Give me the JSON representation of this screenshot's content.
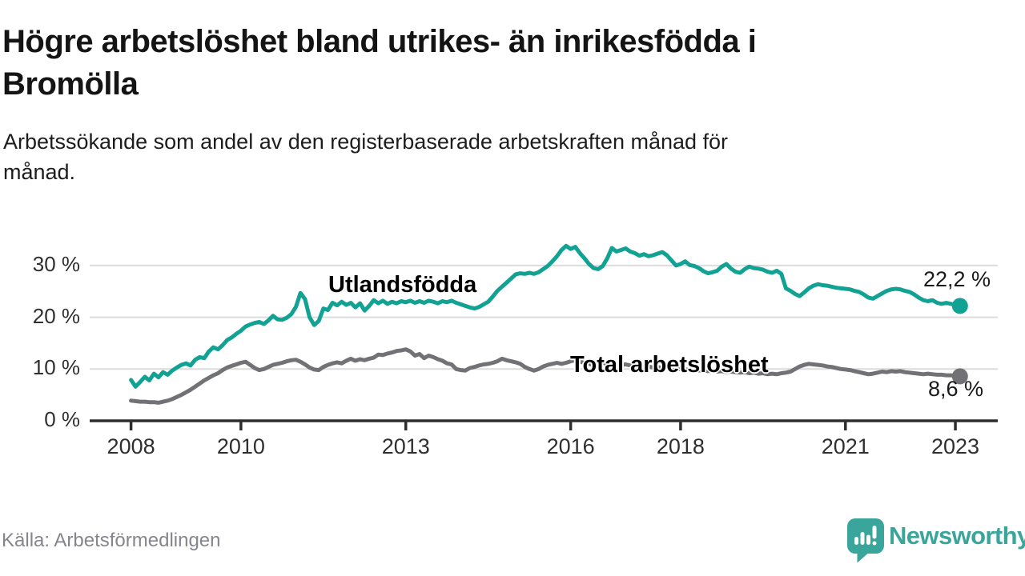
{
  "title": "Högre arbetslöshet bland utrikes- än inrikesfödda i\nBromölla",
  "subtitle": "Arbetssökande som andel av den registerbaserade arbetskraften månad för\nmånad.",
  "source": "Källa: Arbetsförmedlingen",
  "logo": {
    "wordmark": "Newsworthy"
  },
  "colors": {
    "background": "#FFFFFF",
    "accent_teal": "#12A294",
    "line_gray": "#717176",
    "axis": "#2E2E2E",
    "grid": "#DCDCDC",
    "tick_text": "#2F2F2F",
    "title_text": "#141414",
    "value_label_text": "#191919",
    "source_text": "#85858D",
    "logo_teal": "#3AA59B"
  },
  "chart_data": {
    "type": "line",
    "title": "Högre arbetslöshet bland utrikes- än inrikesfödda i Bromölla",
    "subtitle": "Arbetssökande som andel av den registerbaserade arbetskraften månad för månad.",
    "unit": "%",
    "frequency": "monthly",
    "x_range": {
      "start": "2008-01",
      "end": "2023-02"
    },
    "x_axis": {
      "start_year": 2008,
      "ticks": [
        {
          "year": 2008,
          "label": "2008"
        },
        {
          "year": 2010,
          "label": "2010"
        },
        {
          "year": 2013,
          "label": "2013"
        },
        {
          "year": 2016,
          "label": "2016"
        },
        {
          "year": 2018,
          "label": "2018"
        },
        {
          "year": 2021,
          "label": "2021"
        },
        {
          "year": 2023,
          "label": "2023"
        }
      ]
    },
    "y_axis": {
      "range": [
        0,
        35
      ],
      "grid": true,
      "ticks": [
        {
          "value": 0,
          "label": "0 %"
        },
        {
          "value": 10,
          "label": "10 %"
        },
        {
          "value": 20,
          "label": "20 %"
        },
        {
          "value": 30,
          "label": "30 %"
        }
      ]
    },
    "legend_position": "inline-labels",
    "series": [
      {
        "id": "utlandsfodda",
        "name": "Utlandsfödda",
        "color": "#12A294",
        "end_value": 22.2,
        "end_label": "22,2 %",
        "values": [
          7.9,
          6.6,
          7.5,
          8.5,
          7.8,
          9.1,
          8.4,
          9.4,
          8.9,
          9.7,
          10.3,
          10.8,
          11.1,
          10.7,
          11.8,
          12.3,
          12.1,
          13.4,
          14.2,
          13.8,
          14.6,
          15.6,
          16.1,
          16.8,
          17.4,
          18.2,
          18.6,
          18.9,
          19.1,
          18.7,
          19.4,
          20.3,
          19.6,
          19.5,
          19.9,
          20.6,
          22.0,
          24.7,
          23.5,
          20.0,
          18.5,
          19.3,
          21.7,
          21.4,
          22.8,
          22.3,
          23.0,
          22.4,
          22.8,
          21.9,
          22.7,
          21.3,
          22.2,
          23.3,
          22.7,
          23.2,
          22.6,
          23.0,
          22.7,
          23.1,
          22.9,
          23.2,
          22.8,
          23.1,
          22.8,
          23.2,
          23.0,
          22.7,
          23.1,
          22.9,
          23.2,
          22.8,
          22.5,
          22.2,
          21.9,
          21.7,
          22.0,
          22.5,
          23.0,
          24.0,
          25.1,
          25.9,
          26.7,
          27.5,
          28.3,
          28.5,
          28.4,
          28.6,
          28.4,
          28.7,
          29.3,
          29.9,
          30.8,
          31.8,
          33.0,
          33.8,
          33.2,
          33.6,
          32.4,
          31.4,
          30.3,
          29.5,
          29.3,
          29.9,
          31.4,
          33.4,
          32.7,
          33.0,
          33.3,
          32.7,
          32.4,
          31.9,
          32.2,
          31.8,
          32.0,
          32.3,
          32.6,
          32.0,
          31.0,
          30.0,
          30.3,
          30.8,
          30.1,
          29.9,
          29.5,
          28.9,
          28.5,
          28.7,
          29.0,
          29.8,
          30.3,
          29.4,
          28.8,
          28.6,
          29.3,
          29.8,
          29.5,
          29.4,
          29.2,
          28.8,
          28.6,
          29.0,
          28.4,
          25.6,
          25.1,
          24.5,
          24.1,
          24.8,
          25.6,
          26.1,
          26.4,
          26.2,
          26.1,
          25.9,
          25.7,
          25.6,
          25.5,
          25.4,
          25.1,
          24.9,
          24.4,
          23.8,
          23.6,
          24.1,
          24.6,
          25.1,
          25.4,
          25.5,
          25.4,
          25.1,
          24.9,
          24.4,
          23.8,
          23.3,
          23.1,
          23.3,
          22.8,
          22.6,
          22.8,
          22.6,
          22.4,
          22.2
        ]
      },
      {
        "id": "total",
        "name": "Total arbetslöshet",
        "color": "#717176",
        "end_value": 8.6,
        "end_label": "8,6 %",
        "values": [
          3.9,
          3.8,
          3.7,
          3.7,
          3.6,
          3.6,
          3.5,
          3.7,
          3.9,
          4.2,
          4.6,
          5.0,
          5.5,
          6.0,
          6.6,
          7.2,
          7.8,
          8.3,
          8.8,
          9.2,
          9.8,
          10.3,
          10.6,
          10.9,
          11.2,
          11.4,
          10.8,
          10.2,
          9.8,
          10.0,
          10.4,
          10.8,
          11.0,
          11.2,
          11.5,
          11.7,
          11.8,
          11.4,
          10.9,
          10.3,
          9.9,
          9.8,
          10.4,
          10.8,
          11.1,
          11.3,
          11.1,
          11.6,
          12.0,
          11.6,
          11.9,
          11.7,
          12.0,
          12.2,
          12.8,
          12.7,
          13.0,
          13.2,
          13.5,
          13.6,
          13.8,
          13.4,
          12.6,
          12.9,
          12.1,
          12.6,
          12.3,
          11.9,
          11.6,
          11.1,
          10.9,
          10.0,
          9.8,
          9.7,
          10.2,
          10.4,
          10.7,
          10.9,
          11.0,
          11.2,
          11.5,
          12.0,
          11.7,
          11.5,
          11.3,
          11.0,
          10.4,
          10.0,
          9.7,
          10.0,
          10.5,
          10.8,
          11.0,
          11.2,
          11.0,
          11.2,
          11.5,
          11.7,
          11.4,
          11.2,
          11.0,
          10.8,
          11.0,
          11.2,
          11.0,
          10.8,
          10.7,
          10.8,
          10.9,
          10.7,
          10.5,
          10.6,
          10.4,
          10.5,
          10.3,
          10.4,
          10.2,
          10.3,
          10.1,
          10.0,
          10.0,
          9.9,
          9.8,
          9.9,
          9.7,
          9.8,
          9.6,
          9.7,
          9.5,
          9.6,
          9.4,
          9.5,
          9.4,
          9.3,
          9.4,
          9.2,
          9.3,
          9.1,
          9.2,
          9.0,
          9.1,
          9.0,
          9.2,
          9.3,
          9.5,
          10.0,
          10.5,
          10.8,
          11.0,
          10.9,
          10.8,
          10.7,
          10.5,
          10.4,
          10.2,
          10.0,
          9.9,
          9.8,
          9.6,
          9.4,
          9.2,
          9.0,
          9.1,
          9.3,
          9.5,
          9.4,
          9.6,
          9.5,
          9.6,
          9.4,
          9.3,
          9.2,
          9.1,
          9.0,
          9.1,
          9.0,
          8.9,
          8.9,
          8.8,
          8.8,
          8.7,
          8.6
        ]
      }
    ]
  }
}
